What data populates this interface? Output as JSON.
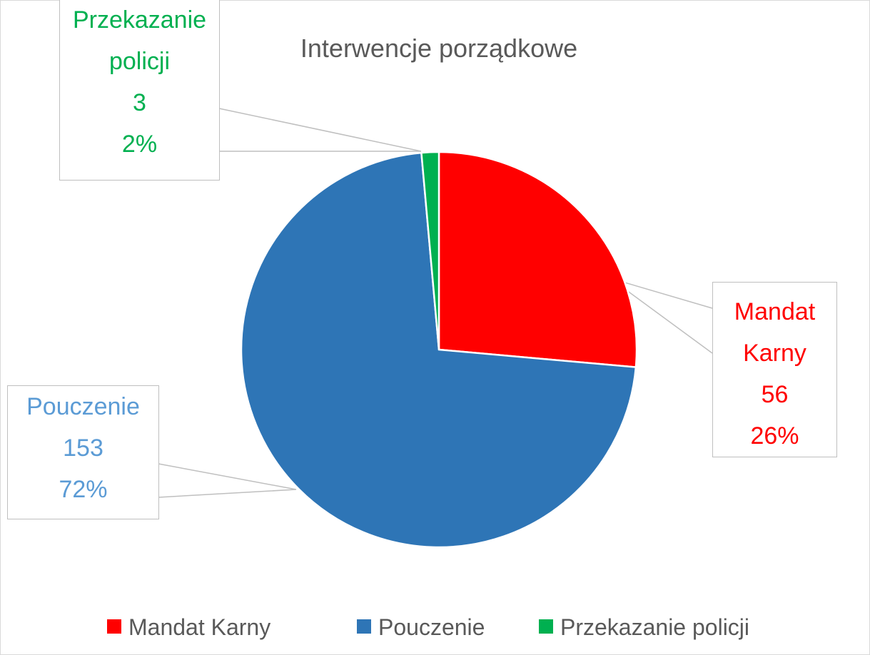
{
  "chart_data": {
    "type": "pie",
    "title": "Interwencje porządkowe",
    "categories": [
      "Mandat Karny",
      "Pouczenie",
      "Przekazanie policji"
    ],
    "values": [
      56,
      153,
      3
    ],
    "percent_labels": [
      "26%",
      "72%",
      "2%"
    ],
    "colors": [
      "#ff0000",
      "#2e75b6",
      "#00b050"
    ],
    "label_colors": [
      "#ff0000",
      "#5b9bd5",
      "#00b050"
    ],
    "legend": "bottom"
  }
}
